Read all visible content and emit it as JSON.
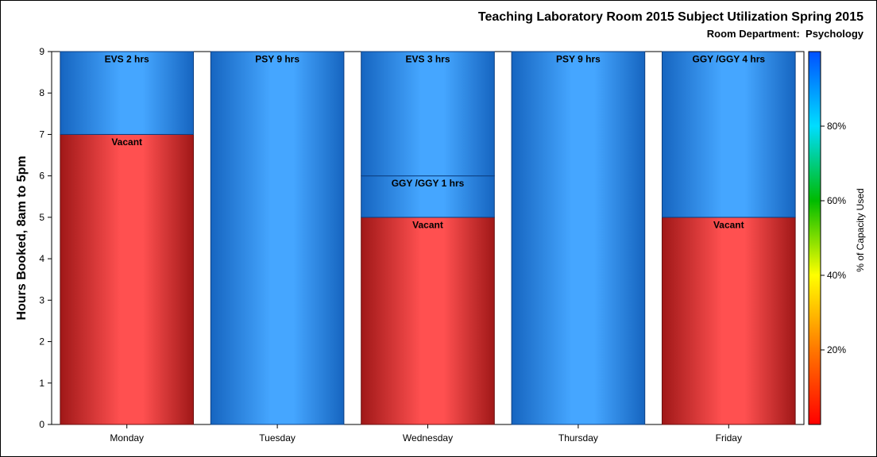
{
  "title": "Teaching Laboratory Room 2015 Subject Utilization Spring 2015",
  "subtitle_label": "Room Department:",
  "subtitle_value": "Psychology",
  "colors": {
    "booked_light": "#45a6ff",
    "booked_dark": "#1665c0",
    "vacant_light": "#ff5050",
    "vacant_dark": "#a01818"
  },
  "chart_data": {
    "type": "bar",
    "stacked": true,
    "ylabel": "Hours Booked, 8am to 5pm",
    "xlabel": "",
    "ylim": [
      0,
      9
    ],
    "yticks": [
      0,
      1,
      2,
      3,
      4,
      5,
      6,
      7,
      8,
      9
    ],
    "categories": [
      "Monday",
      "Tuesday",
      "Wednesday",
      "Thursday",
      "Friday"
    ],
    "bars": [
      {
        "category": "Monday",
        "segments": [
          {
            "label": "Vacant",
            "hours": 7,
            "kind": "vacant"
          },
          {
            "label": "EVS 2 hrs",
            "hours": 2,
            "kind": "booked"
          }
        ]
      },
      {
        "category": "Tuesday",
        "segments": [
          {
            "label": "PSY 9 hrs",
            "hours": 9,
            "kind": "booked"
          }
        ]
      },
      {
        "category": "Wednesday",
        "segments": [
          {
            "label": "Vacant",
            "hours": 5,
            "kind": "vacant"
          },
          {
            "label": "GGY /GGY 1 hrs",
            "hours": 1,
            "kind": "booked"
          },
          {
            "label": "EVS 3 hrs",
            "hours": 3,
            "kind": "booked"
          }
        ]
      },
      {
        "category": "Thursday",
        "segments": [
          {
            "label": "PSY 9 hrs",
            "hours": 9,
            "kind": "booked"
          }
        ]
      },
      {
        "category": "Friday",
        "segments": [
          {
            "label": "Vacant",
            "hours": 5,
            "kind": "vacant"
          },
          {
            "label": "GGY /GGY 4 hrs",
            "hours": 4,
            "kind": "booked"
          }
        ]
      }
    ],
    "colorbar": {
      "label": "% of Capacity Used",
      "ticks": [
        "20%",
        "40%",
        "60%",
        "80%"
      ],
      "tick_values": [
        20,
        40,
        60,
        80
      ],
      "range": [
        0,
        100
      ],
      "stops": [
        "#ff0000",
        "#ff7700",
        "#ffff00",
        "#00bb00",
        "#00ddff",
        "#0050ff"
      ]
    }
  }
}
